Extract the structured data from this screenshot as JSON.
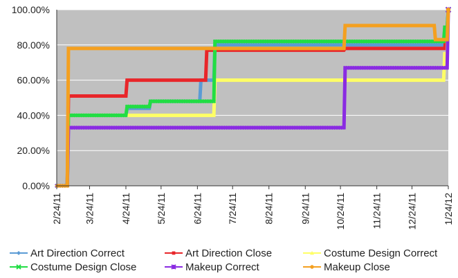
{
  "chart_data": {
    "type": "line",
    "title": "",
    "xlabel": "",
    "ylabel": "",
    "x_range": [
      "2011-02-24",
      "2012-01-24"
    ],
    "ylim": [
      0,
      100
    ],
    "x_tick_labels": [
      "2/24/11",
      "3/24/11",
      "4/24/11",
      "5/24/11",
      "6/24/11",
      "7/24/11",
      "8/24/11",
      "9/24/11",
      "10/24/11",
      "11/24/11",
      "12/24/11",
      "1/24/12"
    ],
    "y_tick_labels": [
      "0.00%",
      "20.00%",
      "40.00%",
      "60.00%",
      "80.00%",
      "100.00%"
    ],
    "grid": "horizontal",
    "background": "#c0c0c0",
    "legend_position": "bottom",
    "series": [
      {
        "name": "Art Direction Correct",
        "color": "#5b9bd5",
        "marker": "diamond",
        "points": [
          [
            "2011-02-24",
            0
          ],
          [
            "2011-03-05",
            0
          ],
          [
            "2011-03-06",
            40
          ],
          [
            "2011-04-24",
            40
          ],
          [
            "2011-04-25",
            44
          ],
          [
            "2011-05-14",
            44
          ],
          [
            "2011-05-15",
            48
          ],
          [
            "2011-06-26",
            48
          ],
          [
            "2011-06-27",
            60
          ],
          [
            "2011-07-08",
            60
          ],
          [
            "2011-07-09",
            80
          ],
          [
            "2011-10-27",
            80
          ],
          [
            "2011-10-28",
            80
          ],
          [
            "2012-01-20",
            80
          ],
          [
            "2012-01-21",
            90
          ],
          [
            "2012-01-23",
            90
          ],
          [
            "2012-01-24",
            100
          ]
        ]
      },
      {
        "name": "Art Direction Close",
        "color": "#e8262a",
        "marker": "square",
        "points": [
          [
            "2011-02-24",
            0
          ],
          [
            "2011-03-05",
            0
          ],
          [
            "2011-03-06",
            51
          ],
          [
            "2011-04-24",
            51
          ],
          [
            "2011-04-25",
            60
          ],
          [
            "2011-07-01",
            60
          ],
          [
            "2011-07-02",
            77
          ],
          [
            "2011-10-27",
            77
          ],
          [
            "2011-10-28",
            78
          ],
          [
            "2012-01-21",
            78
          ],
          [
            "2012-01-22",
            85
          ],
          [
            "2012-01-23",
            85
          ],
          [
            "2012-01-24",
            100
          ]
        ]
      },
      {
        "name": "Costume Design Correct",
        "color": "#ffff66",
        "marker": "triangle",
        "points": [
          [
            "2011-02-24",
            0
          ],
          [
            "2011-03-05",
            0
          ],
          [
            "2011-03-06",
            40
          ],
          [
            "2011-04-24",
            40
          ],
          [
            "2011-04-25",
            40
          ],
          [
            "2011-07-08",
            40
          ],
          [
            "2011-07-09",
            60
          ],
          [
            "2012-01-20",
            60
          ],
          [
            "2012-01-21",
            75
          ],
          [
            "2012-01-23",
            75
          ],
          [
            "2012-01-24",
            100
          ]
        ]
      },
      {
        "name": "Costume Design Close",
        "color": "#22dd44",
        "marker": "x",
        "points": [
          [
            "2011-02-24",
            0
          ],
          [
            "2011-03-05",
            0
          ],
          [
            "2011-03-06",
            40
          ],
          [
            "2011-04-24",
            40
          ],
          [
            "2011-04-25",
            45
          ],
          [
            "2011-05-14",
            45
          ],
          [
            "2011-05-15",
            48
          ],
          [
            "2011-07-08",
            48
          ],
          [
            "2011-07-09",
            82
          ],
          [
            "2012-01-20",
            82
          ],
          [
            "2012-01-21",
            90
          ],
          [
            "2012-01-23",
            90
          ],
          [
            "2012-01-24",
            100
          ]
        ]
      },
      {
        "name": "Makeup Correct",
        "color": "#8a2be2",
        "marker": "star",
        "points": [
          [
            "2011-02-24",
            0
          ],
          [
            "2011-03-05",
            0
          ],
          [
            "2011-03-06",
            33
          ],
          [
            "2011-10-27",
            33
          ],
          [
            "2011-10-28",
            67
          ],
          [
            "2012-01-23",
            67
          ],
          [
            "2012-01-24",
            100
          ]
        ]
      },
      {
        "name": "Makeup Close",
        "color": "#f4a020",
        "marker": "circle",
        "points": [
          [
            "2011-02-24",
            0
          ],
          [
            "2011-03-05",
            0
          ],
          [
            "2011-03-06",
            78
          ],
          [
            "2011-10-27",
            78
          ],
          [
            "2011-10-28",
            91
          ],
          [
            "2012-01-12",
            91
          ],
          [
            "2012-01-13",
            83
          ],
          [
            "2012-01-23",
            83
          ],
          [
            "2012-01-24",
            100
          ]
        ]
      }
    ]
  }
}
